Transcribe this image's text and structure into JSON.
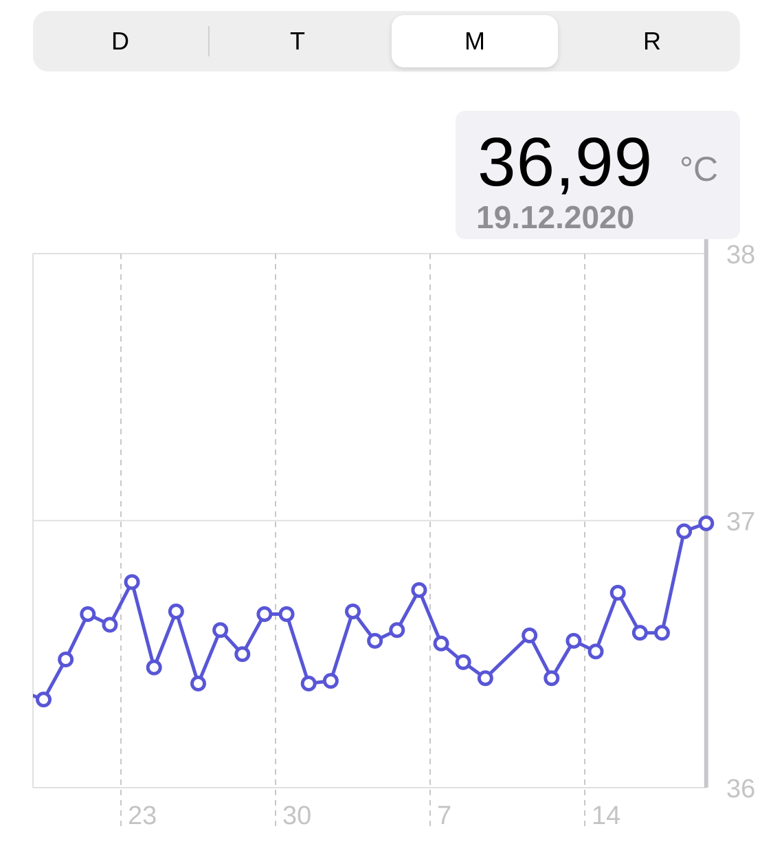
{
  "segmented_control": {
    "items": [
      {
        "label": "D",
        "selected": false
      },
      {
        "label": "T",
        "selected": false
      },
      {
        "label": "M",
        "selected": true
      },
      {
        "label": "R",
        "selected": false
      }
    ]
  },
  "tooltip": {
    "value": "36,99",
    "unit": "°C",
    "date": "19.12.2020"
  },
  "colors": {
    "line": "#5856d6",
    "selection_bar": "#c7c7cc",
    "grid": "#e0e0e2",
    "axis_label": "#c4c4c6"
  },
  "chart_data": {
    "type": "line",
    "ylim": [
      36,
      38
    ],
    "y_ticks": [
      "36",
      "37",
      "38"
    ],
    "x_ticks": [
      {
        "label": "23",
        "date": "2020-11-23"
      },
      {
        "label": "30",
        "date": "2020-11-30"
      },
      {
        "label": "7",
        "date": "2020-12-07"
      },
      {
        "label": "14",
        "date": "2020-12-14"
      }
    ],
    "xlim": [
      "2020-11-19",
      "2020-12-19"
    ],
    "grid": true,
    "selected_date": "2020-12-19",
    "points": [
      {
        "date": "2020-11-18",
        "value": 36.36
      },
      {
        "date": "2020-11-19",
        "value": 36.33
      },
      {
        "date": "2020-11-20",
        "value": 36.48
      },
      {
        "date": "2020-11-21",
        "value": 36.65
      },
      {
        "date": "2020-11-22",
        "value": 36.61
      },
      {
        "date": "2020-11-23",
        "value": 36.77
      },
      {
        "date": "2020-11-24",
        "value": 36.45
      },
      {
        "date": "2020-11-25",
        "value": 36.66
      },
      {
        "date": "2020-11-26",
        "value": 36.39
      },
      {
        "date": "2020-11-27",
        "value": 36.59
      },
      {
        "date": "2020-11-28",
        "value": 36.5
      },
      {
        "date": "2020-11-29",
        "value": 36.65
      },
      {
        "date": "2020-11-30",
        "value": 36.65
      },
      {
        "date": "2020-12-01",
        "value": 36.39
      },
      {
        "date": "2020-12-02",
        "value": 36.4
      },
      {
        "date": "2020-12-03",
        "value": 36.66
      },
      {
        "date": "2020-12-04",
        "value": 36.55
      },
      {
        "date": "2020-12-05",
        "value": 36.59
      },
      {
        "date": "2020-12-06",
        "value": 36.74
      },
      {
        "date": "2020-12-07",
        "value": 36.54
      },
      {
        "date": "2020-12-08",
        "value": 36.47
      },
      {
        "date": "2020-12-09",
        "value": 36.41
      },
      {
        "date": "2020-12-11",
        "value": 36.57
      },
      {
        "date": "2020-12-12",
        "value": 36.41
      },
      {
        "date": "2020-12-13",
        "value": 36.55
      },
      {
        "date": "2020-12-14",
        "value": 36.51
      },
      {
        "date": "2020-12-15",
        "value": 36.73
      },
      {
        "date": "2020-12-16",
        "value": 36.58
      },
      {
        "date": "2020-12-17",
        "value": 36.58
      },
      {
        "date": "2020-12-18",
        "value": 36.96
      },
      {
        "date": "2020-12-19",
        "value": 36.99
      }
    ]
  }
}
